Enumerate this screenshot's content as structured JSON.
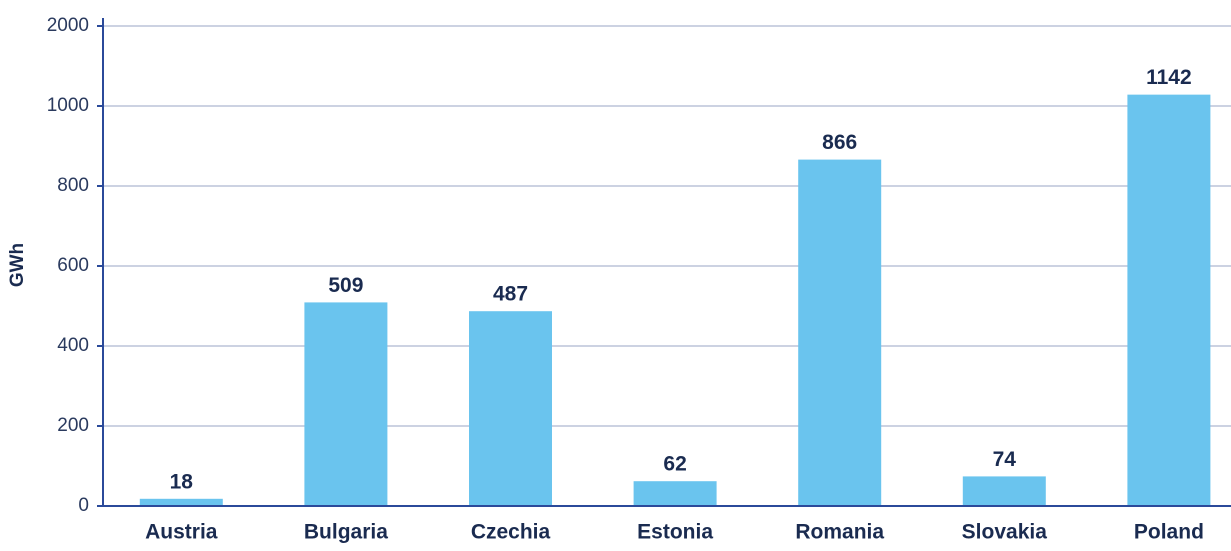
{
  "chart_data": {
    "type": "bar",
    "y_label": "GWh",
    "categories": [
      "Austria",
      "Bulgaria",
      "Czechia",
      "Estonia",
      "Romania",
      "Slovakia",
      "Poland"
    ],
    "values": [
      18,
      509,
      487,
      62,
      866,
      74,
      1142
    ],
    "color": "#6ac4ee",
    "ylim": [
      0,
      2000
    ],
    "yticks": [
      0,
      200,
      400,
      600,
      800,
      1000,
      2000
    ],
    "grid": true
  }
}
